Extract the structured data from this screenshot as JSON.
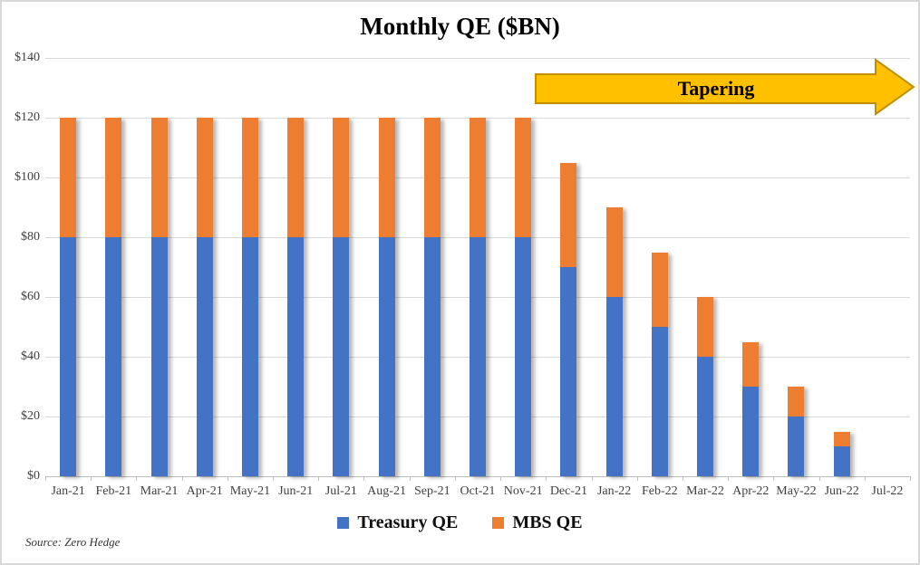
{
  "chart_data": {
    "type": "bar",
    "stacked": true,
    "title": "Monthly QE ($BN)",
    "categories": [
      "Jan-21",
      "Feb-21",
      "Mar-21",
      "Apr-21",
      "May-21",
      "Jun-21",
      "Jul-21",
      "Aug-21",
      "Sep-21",
      "Oct-21",
      "Nov-21",
      "Dec-21",
      "Jan-22",
      "Feb-22",
      "Mar-22",
      "Apr-22",
      "May-22",
      "Jun-22",
      "Jul-22"
    ],
    "series": [
      {
        "name": "Treasury QE",
        "color": "#4472C4",
        "values": [
          80,
          80,
          80,
          80,
          80,
          80,
          80,
          80,
          80,
          80,
          80,
          70,
          60,
          50,
          40,
          30,
          20,
          10,
          0
        ]
      },
      {
        "name": "MBS QE",
        "color": "#ED7D31",
        "values": [
          40,
          40,
          40,
          40,
          40,
          40,
          40,
          40,
          40,
          40,
          40,
          35,
          30,
          25,
          20,
          15,
          10,
          5,
          0
        ]
      }
    ],
    "ylim": [
      0,
      140
    ],
    "ytick_interval": 20,
    "ytick_labels": [
      "$0",
      "$20",
      "$40",
      "$60",
      "$80",
      "$100",
      "$120",
      "$140"
    ],
    "xlabel": "",
    "ylabel": "",
    "grid": true,
    "legend_position": "bottom",
    "annotation": {
      "label": "Tapering",
      "fill_color": "#FFC000",
      "border_color": "#BF9000"
    }
  },
  "source_note": "Source: Zero Hedge",
  "style": {
    "gridline_color": "#D9D9D9",
    "axis_line_color": "#BFBFBF",
    "tick_label_color": "#404040",
    "background": "#FFFFFF",
    "frame_border_color": "#D8D8D8"
  }
}
